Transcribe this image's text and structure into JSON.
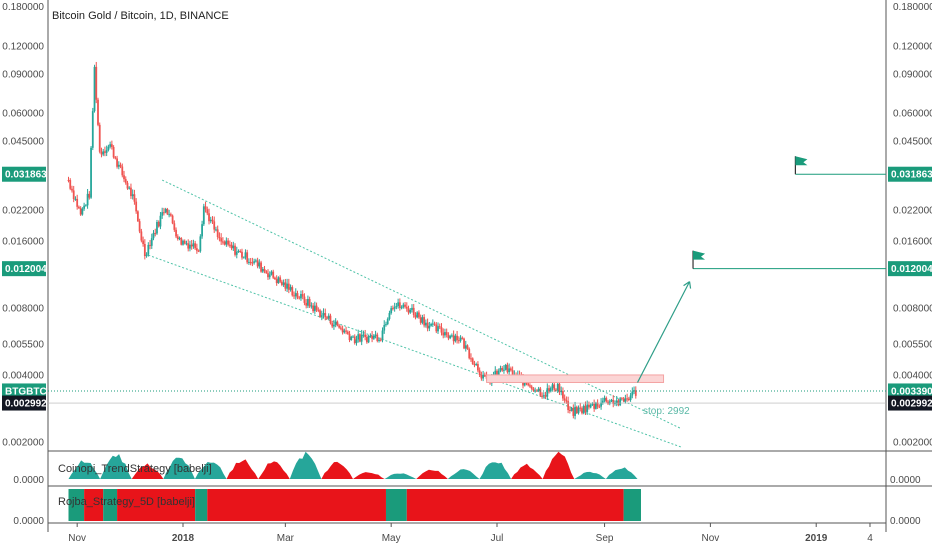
{
  "chart_title": "Bitcoin Gold / Bitcoin, 1D, BINANCE",
  "colors": {
    "up": "#26a69a",
    "down": "#ef5350",
    "teal_tag": "#1a9b7b",
    "dark_tag": "#131722",
    "channel": "#4fc3a8",
    "arrow": "#2e9e88",
    "resistance_fill": "#fbd5d5",
    "resistance_stroke": "#f4a3a3",
    "flag": "#1a9b7b",
    "red_bar": "#e8141a",
    "green_bar": "#1a9b7b"
  },
  "price_axis": {
    "scale": "log",
    "ticks_left": [
      "0.180000",
      "0.120000",
      "0.090000",
      "0.060000",
      "0.045000",
      "0.022000",
      "0.016000",
      "0.008000",
      "0.005500",
      "0.004000",
      "0.002000"
    ],
    "ticks_right": [
      "0.180000",
      "0.120000",
      "0.090000",
      "0.060000",
      "0.045000",
      "0.022000",
      "0.016000",
      "0.008000",
      "0.005500",
      "0.004000",
      "0.002000"
    ],
    "tick_values": [
      0.18,
      0.12,
      0.09,
      0.06,
      0.045,
      0.022,
      0.016,
      0.008,
      0.0055,
      0.004,
      0.002
    ]
  },
  "time_axis": {
    "labels": [
      "Nov",
      "2018",
      "Mar",
      "May",
      "Jul",
      "Sep",
      "Nov",
      "2019",
      "4"
    ],
    "dates": [
      "2017-11-01",
      "2018-01-01",
      "2018-03-01",
      "2018-05-01",
      "2018-07-01",
      "2018-09-01",
      "2018-11-01",
      "2019-01-01",
      "2019-02-01"
    ]
  },
  "tags": {
    "left_symbol": "BTGBTC",
    "left_price": "0.003390",
    "left_close": "0.002992",
    "right_target1": "0.031863",
    "right_target2": "0.012004",
    "right_price": "0.003390",
    "right_close": "0.002992"
  },
  "stop_label": "stop: 2992",
  "indicators": {
    "trend_name": "Coinopi_TrendStrategy [babelji]",
    "trend_value": "0.0000",
    "rojba_name": "Rojba_Strategy_5D [babelji]",
    "rojba_value": "0.0000"
  },
  "chart_data": {
    "type": "candlestick",
    "symbol": "BTGBTC",
    "exchange": "BINANCE",
    "interval": "1D",
    "y_scale": "log",
    "ylim": [
      0.0018,
      0.19
    ],
    "price_points": [
      {
        "date": "2017-10-27",
        "price": 0.03
      },
      {
        "date": "2017-11-03",
        "price": 0.021
      },
      {
        "date": "2017-11-08",
        "price": 0.026
      },
      {
        "date": "2017-11-11",
        "price": 0.095
      },
      {
        "date": "2017-11-14",
        "price": 0.04
      },
      {
        "date": "2017-11-20",
        "price": 0.043
      },
      {
        "date": "2017-11-26",
        "price": 0.033
      },
      {
        "date": "2017-12-03",
        "price": 0.025
      },
      {
        "date": "2017-12-10",
        "price": 0.014
      },
      {
        "date": "2017-12-22",
        "price": 0.023
      },
      {
        "date": "2017-12-30",
        "price": 0.016
      },
      {
        "date": "2018-01-10",
        "price": 0.015
      },
      {
        "date": "2018-01-13",
        "price": 0.023
      },
      {
        "date": "2018-01-22",
        "price": 0.016
      },
      {
        "date": "2018-02-10",
        "price": 0.013
      },
      {
        "date": "2018-03-05",
        "price": 0.0095
      },
      {
        "date": "2018-03-22",
        "price": 0.0075
      },
      {
        "date": "2018-04-10",
        "price": 0.0058
      },
      {
        "date": "2018-04-25",
        "price": 0.006
      },
      {
        "date": "2018-05-01",
        "price": 0.0083
      },
      {
        "date": "2018-05-12",
        "price": 0.0079
      },
      {
        "date": "2018-05-25",
        "price": 0.0065
      },
      {
        "date": "2018-06-10",
        "price": 0.0058
      },
      {
        "date": "2018-06-25",
        "price": 0.0037
      },
      {
        "date": "2018-07-05",
        "price": 0.0043
      },
      {
        "date": "2018-07-15",
        "price": 0.0038
      },
      {
        "date": "2018-07-28",
        "price": 0.0033
      },
      {
        "date": "2018-08-05",
        "price": 0.0036
      },
      {
        "date": "2018-08-12",
        "price": 0.0027
      },
      {
        "date": "2018-08-25",
        "price": 0.0029
      },
      {
        "date": "2018-09-02",
        "price": 0.0031
      },
      {
        "date": "2018-09-10",
        "price": 0.003
      },
      {
        "date": "2018-09-20",
        "price": 0.0034
      }
    ],
    "annotations": {
      "resistance_zone": {
        "from": "2018-06-25",
        "to": "2018-10-05",
        "low": 0.0037,
        "high": 0.004
      },
      "targets": [
        0.031863,
        0.012004
      ],
      "current_price": 0.00339,
      "close_price": 0.002992,
      "stop": 2992
    },
    "trend_indicator_signal": [
      "up",
      "up",
      "down",
      "up",
      "up",
      "down",
      "down",
      "up",
      "down",
      "down",
      "up",
      "down",
      "up",
      "up",
      "down",
      "down",
      "up",
      "up"
    ],
    "rojba_segments": [
      {
        "from": "2017-10-27",
        "to": "2017-11-05",
        "signal": "green"
      },
      {
        "from": "2017-11-05",
        "to": "2017-11-16",
        "signal": "red"
      },
      {
        "from": "2017-11-16",
        "to": "2017-11-24",
        "signal": "green"
      },
      {
        "from": "2017-11-24",
        "to": "2018-01-08",
        "signal": "red"
      },
      {
        "from": "2018-01-08",
        "to": "2018-01-15",
        "signal": "green"
      },
      {
        "from": "2018-01-15",
        "to": "2018-04-28",
        "signal": "red"
      },
      {
        "from": "2018-04-28",
        "to": "2018-05-10",
        "signal": "green"
      },
      {
        "from": "2018-05-10",
        "to": "2018-09-12",
        "signal": "red"
      },
      {
        "from": "2018-09-12",
        "to": "2018-09-22",
        "signal": "green"
      }
    ]
  }
}
